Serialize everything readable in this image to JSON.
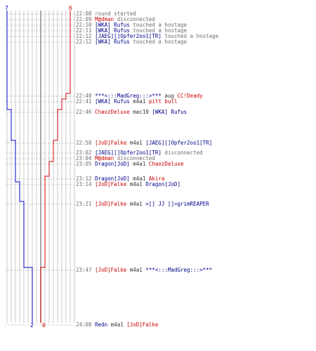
{
  "scoreboard": {
    "blue_top": "7",
    "red_top": "6",
    "blue_bottom": "2",
    "red_bottom": "0",
    "colors": {
      "blue": "#0000cc",
      "red": "#cc0000",
      "grid": "#c8c8c8",
      "axis": "#888888"
    }
  },
  "log": [
    {
      "time": "22:08",
      "parts": [
        {
          "text": "round started",
          "color": "sys"
        }
      ]
    },
    {
      "time": "22:09",
      "parts": [
        {
          "text": "M@dman",
          "color": "red"
        },
        {
          "text": " disconnected",
          "color": "sys"
        }
      ]
    },
    {
      "time": "22:10",
      "parts": [
        {
          "text": "[WKA] Rufus",
          "color": "blue"
        },
        {
          "text": " touched a hostage",
          "color": "sys"
        }
      ]
    },
    {
      "time": "22:11",
      "parts": [
        {
          "text": "[WKA] Rufus",
          "color": "blue"
        },
        {
          "text": " touched a hostage",
          "color": "sys"
        }
      ]
    },
    {
      "time": "22:12",
      "parts": [
        {
          "text": "[JAEG][]Opfer2oo1[TR]",
          "color": "blue"
        },
        {
          "text": " touched a hostage",
          "color": "sys"
        }
      ]
    },
    {
      "time": "22:12",
      "parts": [
        {
          "text": "[WKA] Rufus",
          "color": "blue"
        },
        {
          "text": " touched a hostage",
          "color": "sys"
        }
      ]
    },
    {
      "time": "22:40",
      "parts": [
        {
          "text": "***<:::MadGreg:::>***",
          "color": "blue"
        },
        {
          "text": " aug ",
          "color": "black"
        },
        {
          "text": "CC!Deady",
          "color": "red"
        }
      ]
    },
    {
      "time": "22:41",
      "parts": [
        {
          "text": "[WKA] Rufus",
          "color": "blue"
        },
        {
          "text": " m4a1 ",
          "color": "black"
        },
        {
          "text": "pitt bull",
          "color": "red"
        }
      ]
    },
    {
      "time": "22:46",
      "parts": [
        {
          "text": "ChaozDeluxe",
          "color": "red"
        },
        {
          "text": " mac10 ",
          "color": "black"
        },
        {
          "text": "[WKA] Rufus",
          "color": "blue"
        }
      ]
    },
    {
      "time": "22:58",
      "parts": [
        {
          "text": "[JoD]Falke",
          "color": "red"
        },
        {
          "text": " m4a1 ",
          "color": "black"
        },
        {
          "text": "[JAEG][]Opfer2oo1[TR]",
          "color": "blue"
        }
      ]
    },
    {
      "time": "23:02",
      "parts": [
        {
          "text": "[JAEG][]Opfer2oo1[TR]",
          "color": "blue"
        },
        {
          "text": " disconnected",
          "color": "sys"
        }
      ]
    },
    {
      "time": "23:04",
      "parts": [
        {
          "text": "M@dman",
          "color": "red"
        },
        {
          "text": " disconnected",
          "color": "sys"
        }
      ]
    },
    {
      "time": "23:05",
      "parts": [
        {
          "text": "Dragon[JoD]",
          "color": "blue"
        },
        {
          "text": " m4a1 ",
          "color": "black"
        },
        {
          "text": "ChaozDeluxe",
          "color": "red"
        }
      ]
    },
    {
      "time": "23:12",
      "parts": [
        {
          "text": "Dragon[JoD]",
          "color": "blue"
        },
        {
          "text": " m4a1 ",
          "color": "black"
        },
        {
          "text": "Akira",
          "color": "red"
        }
      ]
    },
    {
      "time": "23:14",
      "parts": [
        {
          "text": "[JoD]Falke",
          "color": "red"
        },
        {
          "text": " m4a1 ",
          "color": "black"
        },
        {
          "text": "Dragon[JoD]",
          "color": "blue"
        }
      ]
    },
    {
      "time": "23:21",
      "parts": [
        {
          "text": "[JoD]Falke",
          "color": "red"
        },
        {
          "text": " m4a1 ",
          "color": "black"
        },
        {
          "text": "=[] JJ []=grimREAPER",
          "color": "blue"
        }
      ]
    },
    {
      "time": "23:47",
      "parts": [
        {
          "text": "[JoD]Falke",
          "color": "red"
        },
        {
          "text": " m4a1 ",
          "color": "black"
        },
        {
          "text": "***<:::MadGreg:::>***",
          "color": "blue"
        }
      ]
    },
    {
      "time": "24:08",
      "parts": [
        {
          "text": "Redn",
          "color": "blue"
        },
        {
          "text": " m4a1 ",
          "color": "black"
        },
        {
          "text": "[JoD]Falke",
          "color": "red"
        }
      ]
    }
  ]
}
